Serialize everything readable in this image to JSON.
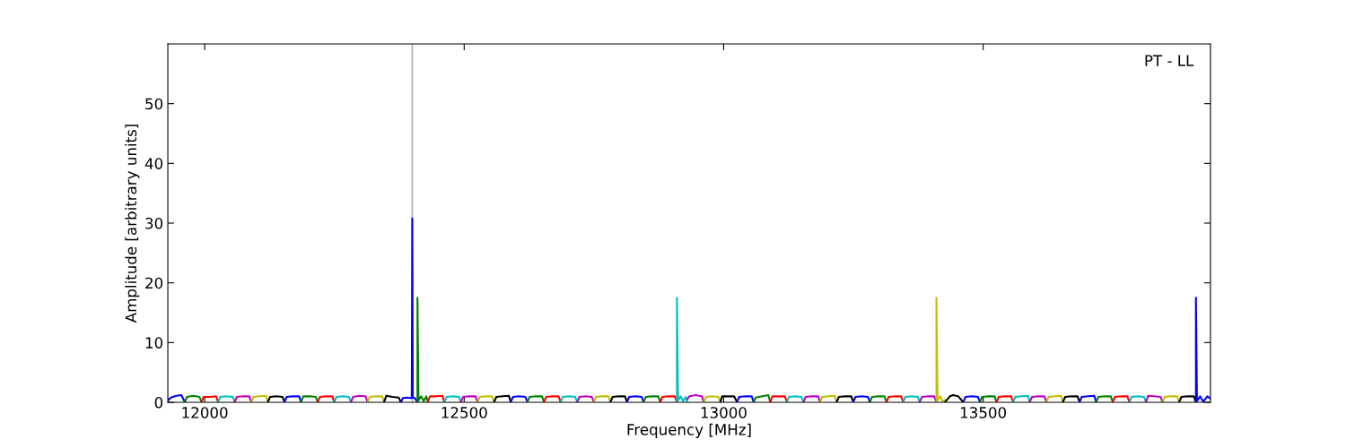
{
  "chart_data": {
    "type": "line",
    "xlabel": "Frequency [MHz]",
    "ylabel": "Amplitude [arbitrary units]",
    "xlim": [
      11929,
      13938
    ],
    "xticks": [
      12000,
      12500,
      13000,
      13500
    ],
    "ylim": [
      0,
      60
    ],
    "yticks": [
      0,
      10,
      20,
      30,
      40,
      50
    ],
    "grid": false,
    "line_style": "solid",
    "annotations": [
      "PT - LL"
    ],
    "ref_lines": [
      {
        "axis": "x",
        "value": 12400,
        "color": "#b0b0b0"
      }
    ],
    "series": [
      {
        "color": "#0000ff",
        "x": [
          11929,
          11935,
          11945,
          11955,
          11962
        ],
        "values": [
          0.3,
          0.8,
          1.1,
          1.2,
          0
        ]
      },
      {
        "color": "#008000",
        "x": [
          11962,
          11966,
          11978,
          11990,
          11994
        ],
        "values": [
          0.1,
          0.9,
          1.1,
          0.9,
          0
        ]
      },
      {
        "color": "#ff0000",
        "x": [
          11994,
          11998,
          12010,
          12022,
          12026
        ],
        "values": [
          0.1,
          0.9,
          0.9,
          1.0,
          0
        ]
      },
      {
        "color": "#00bfbf",
        "x": [
          12026,
          12030,
          12042,
          12054,
          12058
        ],
        "values": [
          0.1,
          0.9,
          1.0,
          0.9,
          0
        ]
      },
      {
        "color": "#bf00bf",
        "x": [
          12058,
          12062,
          12074,
          12086,
          12090
        ],
        "values": [
          0.1,
          0.9,
          1.0,
          1.0,
          0
        ]
      },
      {
        "color": "#bfbf00",
        "x": [
          12090,
          12094,
          12106,
          12118,
          12122
        ],
        "values": [
          0.1,
          0.9,
          1.0,
          1.1,
          0
        ]
      },
      {
        "color": "#000000",
        "x": [
          12122,
          12126,
          12138,
          12150,
          12154
        ],
        "values": [
          0.1,
          0.9,
          1.0,
          0.9,
          0
        ]
      },
      {
        "color": "#0000ff",
        "x": [
          12154,
          12158,
          12170,
          12182,
          12186
        ],
        "values": [
          0.1,
          0.9,
          1.0,
          1.0,
          0
        ]
      },
      {
        "color": "#008000",
        "x": [
          12186,
          12190,
          12202,
          12214,
          12218
        ],
        "values": [
          0.1,
          1.0,
          1.0,
          0.9,
          0
        ]
      },
      {
        "color": "#ff0000",
        "x": [
          12218,
          12222,
          12234,
          12246,
          12250
        ],
        "values": [
          0.1,
          0.9,
          1.0,
          1.0,
          0
        ]
      },
      {
        "color": "#00bfbf",
        "x": [
          12250,
          12254,
          12266,
          12278,
          12282
        ],
        "values": [
          0.1,
          0.9,
          1.0,
          0.9,
          0
        ]
      },
      {
        "color": "#bf00bf",
        "x": [
          12282,
          12286,
          12298,
          12310,
          12314
        ],
        "values": [
          0.1,
          0.9,
          1.1,
          1.0,
          0
        ]
      },
      {
        "color": "#bfbf00",
        "x": [
          12314,
          12318,
          12330,
          12342,
          12346
        ],
        "values": [
          0.1,
          0.9,
          1.0,
          1.0,
          0
        ]
      },
      {
        "color": "#000000",
        "x": [
          12346,
          12350,
          12362,
          12374,
          12378
        ],
        "values": [
          0.1,
          1.1,
          0.9,
          0.8,
          0
        ]
      },
      {
        "color": "#0000ff",
        "x": [
          12378,
          12382,
          12390,
          12399,
          12400,
          12401,
          12405,
          12410
        ],
        "values": [
          0,
          0.7,
          0.8,
          0.7,
          30.8,
          0.8,
          0.7,
          0
        ]
      },
      {
        "color": "#008000",
        "x": [
          12410,
          12410,
          12412,
          12417,
          12422,
          12427,
          12430
        ],
        "values": [
          0,
          17.5,
          0.3,
          1.0,
          0.2,
          1.0,
          0
        ]
      },
      {
        "color": "#ff0000",
        "x": [
          12430,
          12434,
          12446,
          12458,
          12462
        ],
        "values": [
          0.1,
          1.0,
          1.0,
          1.1,
          0
        ]
      },
      {
        "color": "#00bfbf",
        "x": [
          12462,
          12466,
          12478,
          12490,
          12494
        ],
        "values": [
          0.1,
          0.9,
          1.0,
          0.9,
          0
        ]
      },
      {
        "color": "#bf00bf",
        "x": [
          12494,
          12498,
          12510,
          12522,
          12526
        ],
        "values": [
          0.1,
          0.9,
          1.0,
          1.0,
          0
        ]
      },
      {
        "color": "#bfbf00",
        "x": [
          12526,
          12530,
          12542,
          12554,
          12558
        ],
        "values": [
          0.1,
          0.9,
          1.0,
          1.0,
          0
        ]
      },
      {
        "color": "#000000",
        "x": [
          12558,
          12562,
          12574,
          12586,
          12590
        ],
        "values": [
          0.1,
          0.9,
          1.0,
          1.1,
          0
        ]
      },
      {
        "color": "#0000ff",
        "x": [
          12590,
          12594,
          12606,
          12618,
          12622
        ],
        "values": [
          0.1,
          0.9,
          1.0,
          0.9,
          0
        ]
      },
      {
        "color": "#008000",
        "x": [
          12622,
          12626,
          12638,
          12650,
          12654
        ],
        "values": [
          0.1,
          0.9,
          1.0,
          1.0,
          0
        ]
      },
      {
        "color": "#ff0000",
        "x": [
          12654,
          12658,
          12670,
          12682,
          12686
        ],
        "values": [
          0.1,
          0.9,
          1.0,
          1.0,
          0
        ]
      },
      {
        "color": "#00bfbf",
        "x": [
          12686,
          12690,
          12702,
          12714,
          12718
        ],
        "values": [
          0.1,
          0.9,
          1.0,
          0.9,
          0
        ]
      },
      {
        "color": "#bf00bf",
        "x": [
          12718,
          12722,
          12734,
          12746,
          12750
        ],
        "values": [
          0.1,
          0.9,
          1.0,
          0.9,
          0
        ]
      },
      {
        "color": "#bfbf00",
        "x": [
          12750,
          12754,
          12766,
          12778,
          12782
        ],
        "values": [
          0.1,
          0.9,
          1.0,
          1.0,
          0
        ]
      },
      {
        "color": "#000000",
        "x": [
          12782,
          12786,
          12798,
          12810,
          12814
        ],
        "values": [
          0.1,
          0.9,
          1.0,
          1.0,
          0
        ]
      },
      {
        "color": "#0000ff",
        "x": [
          12814,
          12818,
          12830,
          12842,
          12846
        ],
        "values": [
          0.1,
          0.9,
          1.0,
          0.9,
          0
        ]
      },
      {
        "color": "#008000",
        "x": [
          12846,
          12850,
          12862,
          12874,
          12878
        ],
        "values": [
          0.1,
          0.9,
          1.0,
          1.0,
          0
        ]
      },
      {
        "color": "#ff0000",
        "x": [
          12878,
          12882,
          12894,
          12906,
          12910
        ],
        "values": [
          0.1,
          0.9,
          1.0,
          1.0,
          0
        ]
      },
      {
        "color": "#00bfbf",
        "x": [
          12910,
          12910,
          12912,
          12917,
          12922,
          12927,
          12930
        ],
        "values": [
          0,
          17.5,
          0.3,
          1.0,
          0.2,
          0.9,
          0
        ]
      },
      {
        "color": "#bf00bf",
        "x": [
          12930,
          12934,
          12946,
          12958,
          12962
        ],
        "values": [
          0.5,
          1.0,
          1.2,
          1.0,
          0
        ]
      },
      {
        "color": "#bfbf00",
        "x": [
          12962,
          12966,
          12978,
          12990,
          12994
        ],
        "values": [
          0.1,
          0.9,
          1.0,
          0.9,
          0
        ]
      },
      {
        "color": "#000000",
        "x": [
          12994,
          12997,
          13008,
          13020,
          13026
        ],
        "values": [
          0.1,
          1.0,
          1.0,
          1.0,
          0
        ]
      },
      {
        "color": "#0000ff",
        "x": [
          13026,
          13030,
          13042,
          13054,
          13058
        ],
        "values": [
          0.1,
          0.9,
          1.0,
          1.0,
          0
        ]
      },
      {
        "color": "#008000",
        "x": [
          13058,
          13062,
          13074,
          13086,
          13090
        ],
        "values": [
          0.1,
          0.8,
          1.0,
          1.2,
          0
        ]
      },
      {
        "color": "#ff0000",
        "x": [
          13090,
          13094,
          13106,
          13118,
          13122
        ],
        "values": [
          0.1,
          1.0,
          1.0,
          1.0,
          0
        ]
      },
      {
        "color": "#00bfbf",
        "x": [
          13122,
          13126,
          13138,
          13150,
          13154
        ],
        "values": [
          0.1,
          0.9,
          1.0,
          0.9,
          0
        ]
      },
      {
        "color": "#bf00bf",
        "x": [
          13154,
          13158,
          13170,
          13182,
          13186
        ],
        "values": [
          0.1,
          0.9,
          1.0,
          1.0,
          0
        ]
      },
      {
        "color": "#bfbf00",
        "x": [
          13186,
          13190,
          13202,
          13214,
          13218
        ],
        "values": [
          0.1,
          0.9,
          1.0,
          1.1,
          0
        ]
      },
      {
        "color": "#000000",
        "x": [
          13218,
          13222,
          13234,
          13246,
          13250
        ],
        "values": [
          0.1,
          0.9,
          1.0,
          1.0,
          0
        ]
      },
      {
        "color": "#0000ff",
        "x": [
          13250,
          13254,
          13266,
          13278,
          13282
        ],
        "values": [
          0.1,
          0.9,
          1.0,
          0.9,
          0
        ]
      },
      {
        "color": "#008000",
        "x": [
          13282,
          13286,
          13298,
          13310,
          13314
        ],
        "values": [
          0.1,
          0.9,
          1.0,
          1.0,
          0
        ]
      },
      {
        "color": "#ff0000",
        "x": [
          13314,
          13318,
          13330,
          13342,
          13346
        ],
        "values": [
          0.1,
          0.9,
          1.0,
          1.0,
          0
        ]
      },
      {
        "color": "#00bfbf",
        "x": [
          13346,
          13350,
          13362,
          13374,
          13378
        ],
        "values": [
          0.1,
          0.9,
          1.0,
          0.9,
          0
        ]
      },
      {
        "color": "#bf00bf",
        "x": [
          13378,
          13382,
          13394,
          13406,
          13410
        ],
        "values": [
          0.1,
          0.9,
          1.0,
          1.0,
          0
        ]
      },
      {
        "color": "#bfbf00",
        "x": [
          13410,
          13410,
          13412,
          13417,
          13422,
          13427
        ],
        "values": [
          0,
          17.5,
          0.3,
          1.0,
          0.2,
          0.4
        ]
      },
      {
        "color": "#000000",
        "x": [
          13427,
          13436,
          13442,
          13452,
          13462
        ],
        "values": [
          0.1,
          1.0,
          1.2,
          1.0,
          0
        ]
      },
      {
        "color": "#0000ff",
        "x": [
          13462,
          13466,
          13478,
          13490,
          13494
        ],
        "values": [
          0.1,
          0.9,
          1.0,
          0.9,
          0
        ]
      },
      {
        "color": "#008000",
        "x": [
          13494,
          13498,
          13510,
          13522,
          13526
        ],
        "values": [
          0.1,
          0.9,
          1.0,
          1.0,
          0
        ]
      },
      {
        "color": "#ff0000",
        "x": [
          13526,
          13530,
          13542,
          13554,
          13558
        ],
        "values": [
          0.1,
          0.9,
          1.0,
          1.0,
          0
        ]
      },
      {
        "color": "#00bfbf",
        "x": [
          13558,
          13562,
          13574,
          13586,
          13590
        ],
        "values": [
          0.1,
          0.9,
          1.0,
          1.1,
          0
        ]
      },
      {
        "color": "#bf00bf",
        "x": [
          13590,
          13594,
          13606,
          13618,
          13622
        ],
        "values": [
          0.1,
          0.9,
          1.0,
          1.0,
          0
        ]
      },
      {
        "color": "#bfbf00",
        "x": [
          13622,
          13626,
          13638,
          13650,
          13654
        ],
        "values": [
          0.1,
          0.9,
          1.0,
          1.1,
          0
        ]
      },
      {
        "color": "#000000",
        "x": [
          13654,
          13658,
          13670,
          13682,
          13686
        ],
        "values": [
          0.1,
          0.9,
          1.0,
          1.0,
          0
        ]
      },
      {
        "color": "#0000ff",
        "x": [
          13686,
          13690,
          13702,
          13714,
          13718
        ],
        "values": [
          0.1,
          0.9,
          1.0,
          1.1,
          0
        ]
      },
      {
        "color": "#008000",
        "x": [
          13718,
          13722,
          13734,
          13746,
          13750
        ],
        "values": [
          0.1,
          0.9,
          1.0,
          1.0,
          0
        ]
      },
      {
        "color": "#ff0000",
        "x": [
          13750,
          13754,
          13766,
          13778,
          13782
        ],
        "values": [
          0.1,
          0.9,
          1.0,
          1.0,
          0
        ]
      },
      {
        "color": "#00bfbf",
        "x": [
          13782,
          13786,
          13798,
          13810,
          13814
        ],
        "values": [
          0.1,
          0.9,
          1.0,
          0.9,
          0
        ]
      },
      {
        "color": "#bf00bf",
        "x": [
          13814,
          13818,
          13830,
          13842,
          13846
        ],
        "values": [
          0.1,
          1.1,
          1.0,
          0.9,
          0
        ]
      },
      {
        "color": "#bfbf00",
        "x": [
          13846,
          13850,
          13862,
          13874,
          13878
        ],
        "values": [
          0.1,
          0.9,
          1.0,
          1.0,
          0
        ]
      },
      {
        "color": "#000000",
        "x": [
          13878,
          13882,
          13894,
          13906,
          13910
        ],
        "values": [
          0.1,
          0.9,
          1.0,
          1.0,
          0
        ]
      },
      {
        "color": "#0000ff",
        "x": [
          13910,
          13910,
          13912,
          13918,
          13924,
          13932,
          13938
        ],
        "values": [
          0,
          17.5,
          0.2,
          1.0,
          0.1,
          1.0,
          0.6
        ]
      }
    ]
  }
}
